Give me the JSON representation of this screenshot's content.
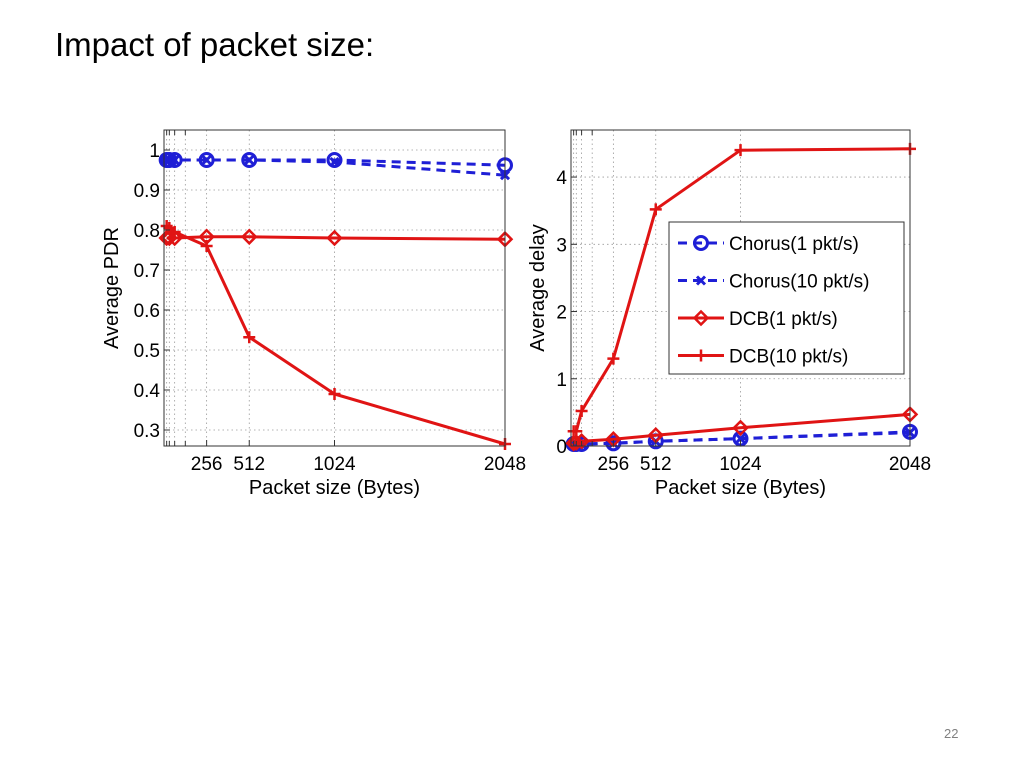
{
  "slide": {
    "title": "Impact of packet size:",
    "page_number": "22"
  },
  "chart_data": [
    {
      "type": "line",
      "xlabel": "Packet size (Bytes)",
      "ylabel": "Average PDR",
      "xlim": [
        0,
        2048
      ],
      "ylim": [
        0.26,
        1.05
      ],
      "xticks": [
        256,
        512,
        1024,
        2048
      ],
      "yticks": [
        0.3,
        0.4,
        0.5,
        0.6,
        0.7,
        0.8,
        0.9,
        1
      ],
      "ytick_labels": [
        "0.3",
        "0.4",
        "0.5",
        "0.6",
        "0.7",
        "0.8",
        "0.9",
        "1"
      ],
      "grid": true,
      "x": [
        16,
        32,
        64,
        256,
        512,
        1024,
        2048
      ],
      "series": [
        {
          "name": "Chorus(1 pkt/s)",
          "color": "#1f1fd6",
          "dash": true,
          "marker": "circle",
          "values": [
            0.975,
            0.975,
            0.975,
            0.975,
            0.975,
            0.975,
            0.962
          ]
        },
        {
          "name": "Chorus(10 pkt/s)",
          "color": "#1f1fd6",
          "dash": true,
          "marker": "x",
          "values": [
            0.975,
            0.975,
            0.975,
            0.975,
            0.975,
            0.97,
            0.937
          ]
        },
        {
          "name": "DCB(1 pkt/s)",
          "color": "#e01414",
          "dash": false,
          "marker": "diamond",
          "values": [
            0.78,
            0.78,
            0.78,
            0.783,
            0.783,
            0.78,
            0.777
          ]
        },
        {
          "name": "DCB(10 pkt/s)",
          "color": "#e01414",
          "dash": false,
          "marker": "plus",
          "values": [
            0.81,
            0.805,
            0.795,
            0.76,
            0.532,
            0.39,
            0.265
          ]
        }
      ]
    },
    {
      "type": "line",
      "xlabel": "Packet size (Bytes)",
      "ylabel": "Average delay",
      "xlim": [
        0,
        2048
      ],
      "ylim": [
        0,
        4.7
      ],
      "xticks": [
        256,
        512,
        1024,
        2048
      ],
      "yticks": [
        0,
        1,
        2,
        3,
        4
      ],
      "ytick_labels": [
        "0",
        "1",
        "2",
        "3",
        "4"
      ],
      "grid": true,
      "legend": "center-right",
      "x": [
        16,
        32,
        64,
        256,
        512,
        1024,
        2048
      ],
      "series": [
        {
          "name": "Chorus(1 pkt/s)",
          "color": "#1f1fd6",
          "dash": true,
          "marker": "circle",
          "values": [
            0.03,
            0.03,
            0.03,
            0.04,
            0.07,
            0.11,
            0.21
          ]
        },
        {
          "name": "Chorus(10 pkt/s)",
          "color": "#1f1fd6",
          "dash": true,
          "marker": "x",
          "values": [
            0.03,
            0.03,
            0.03,
            0.04,
            0.07,
            0.11,
            0.2
          ]
        },
        {
          "name": "DCB(1 pkt/s)",
          "color": "#e01414",
          "dash": false,
          "marker": "diamond",
          "values": [
            0.04,
            0.05,
            0.07,
            0.1,
            0.16,
            0.27,
            0.47
          ]
        },
        {
          "name": "DCB(10 pkt/s)",
          "color": "#e01414",
          "dash": false,
          "marker": "plus",
          "values": [
            0.22,
            0.22,
            0.52,
            1.3,
            3.52,
            4.4,
            4.42
          ]
        }
      ]
    }
  ]
}
